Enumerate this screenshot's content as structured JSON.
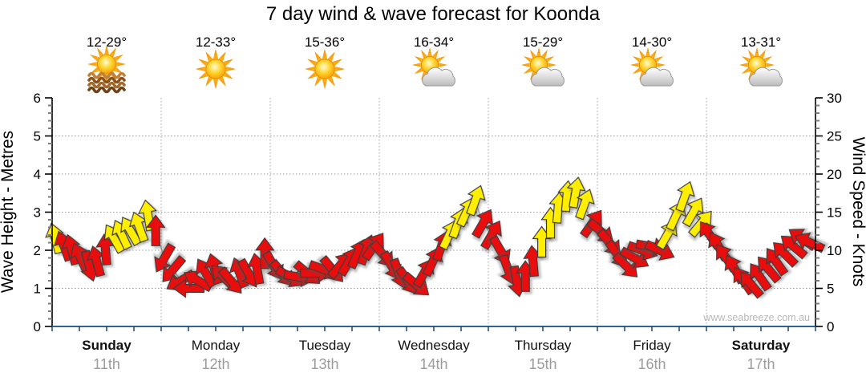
{
  "title": "7 day wind & wave forecast for Koonda",
  "watermark": "www.seabreeze.com.au",
  "axes": {
    "left_title": "Wave Height - Metres",
    "right_title": "Wind Speed - Knots",
    "left_ticks": [
      "0",
      "1",
      "2",
      "3",
      "4",
      "5",
      "6"
    ],
    "right_ticks": [
      "0",
      "5",
      "10",
      "15",
      "20",
      "25",
      "30"
    ]
  },
  "days": [
    {
      "name": "Sunday",
      "date": "11th",
      "temp": "12-29°",
      "icon": "sun-over-water",
      "bold": true
    },
    {
      "name": "Monday",
      "date": "12th",
      "temp": "12-33°",
      "icon": "sunny",
      "bold": false
    },
    {
      "name": "Tuesday",
      "date": "13th",
      "temp": "15-36°",
      "icon": "sunny",
      "bold": false
    },
    {
      "name": "Wednesday",
      "date": "14th",
      "temp": "16-34°",
      "icon": "partly-cloudy",
      "bold": false
    },
    {
      "name": "Thursday",
      "date": "15th",
      "temp": "15-29°",
      "icon": "partly-cloudy",
      "bold": false
    },
    {
      "name": "Friday",
      "date": "16th",
      "temp": "14-30°",
      "icon": "partly-cloudy",
      "bold": false
    },
    {
      "name": "Saturday",
      "date": "17th",
      "temp": "13-31°",
      "icon": "partly-cloudy",
      "bold": true
    }
  ],
  "colors": {
    "arrow_red": "#e90f0f",
    "arrow_yellow": "#ffee00",
    "grid": "#9f9f9f",
    "axis": "#000000",
    "bottom_axis": "#2e6496",
    "date_gray": "#9b9b9b",
    "watermark_gray": "#b8b8b8"
  },
  "chart_data": {
    "type": "scatter",
    "subtype": "wind-arrow-forecast",
    "title": "7 day wind & wave forecast for Koonda",
    "x_categories": [
      "Sunday 11th",
      "Monday 12th",
      "Tuesday 13th",
      "Wednesday 14th",
      "Thursday 15th",
      "Friday 16th",
      "Saturday 17th"
    ],
    "y_left": {
      "label": "Wave Height - Metres",
      "range": [
        0,
        6
      ],
      "major_step": 1
    },
    "y_right": {
      "label": "Wind Speed - Knots",
      "range": [
        0,
        30
      ],
      "major_step": 5
    },
    "grid": "dotted, horizontal at 1-5 m, vertical at day boundaries",
    "legend": "arrow color: yellow >= ~11.5 knots, red < ~11.5 knots; arrow rotation = wind direction",
    "arrow_fields": [
      "time_days",
      "wind_speed_knots",
      "direction_deg_cw_from_up",
      "color"
    ],
    "arrows": [
      [
        0.03,
        11.5,
        -15,
        "Y"
      ],
      [
        0.11,
        10.5,
        -20,
        "R"
      ],
      [
        0.18,
        10,
        -15,
        "R"
      ],
      [
        0.26,
        9,
        -25,
        "R"
      ],
      [
        0.34,
        8,
        165,
        "R"
      ],
      [
        0.41,
        8.5,
        -15,
        "R"
      ],
      [
        0.49,
        10,
        -5,
        "R"
      ],
      [
        0.57,
        11.5,
        -30,
        "Y"
      ],
      [
        0.64,
        12,
        -25,
        "Y"
      ],
      [
        0.72,
        12.5,
        -30,
        "Y"
      ],
      [
        0.8,
        13,
        -20,
        "Y"
      ],
      [
        0.88,
        14.5,
        -10,
        "Y"
      ],
      [
        0.95,
        12.5,
        0,
        "R"
      ],
      [
        1.03,
        9,
        -150,
        "R"
      ],
      [
        1.11,
        7.5,
        -140,
        "R"
      ],
      [
        1.18,
        6,
        -120,
        "R"
      ],
      [
        1.26,
        5,
        -90,
        "R"
      ],
      [
        1.34,
        6,
        -60,
        "R"
      ],
      [
        1.41,
        7,
        -30,
        "R"
      ],
      [
        1.49,
        7.5,
        -15,
        "R"
      ],
      [
        1.57,
        6.5,
        -45,
        "R"
      ],
      [
        1.64,
        6,
        140,
        "R"
      ],
      [
        1.72,
        7,
        -20,
        "R"
      ],
      [
        1.8,
        7,
        150,
        "R"
      ],
      [
        1.88,
        7.5,
        -10,
        "R"
      ],
      [
        1.95,
        9.5,
        0,
        "R"
      ],
      [
        2.03,
        8,
        150,
        "R"
      ],
      [
        2.11,
        7,
        140,
        "R"
      ],
      [
        2.18,
        6.5,
        120,
        "R"
      ],
      [
        2.26,
        6.5,
        100,
        "R"
      ],
      [
        2.34,
        7,
        130,
        "R"
      ],
      [
        2.41,
        7,
        90,
        "R"
      ],
      [
        2.49,
        7.5,
        110,
        "R"
      ],
      [
        2.57,
        7.5,
        140,
        "R"
      ],
      [
        2.64,
        8,
        40,
        "R"
      ],
      [
        2.72,
        8.5,
        30,
        "R"
      ],
      [
        2.8,
        9.5,
        25,
        "R"
      ],
      [
        2.88,
        10,
        20,
        "R"
      ],
      [
        2.95,
        10.5,
        35,
        "R"
      ],
      [
        3.03,
        9.5,
        140,
        "R"
      ],
      [
        3.11,
        8,
        150,
        "R"
      ],
      [
        3.18,
        7,
        160,
        "R"
      ],
      [
        3.26,
        6,
        145,
        "R"
      ],
      [
        3.34,
        5.5,
        130,
        "R"
      ],
      [
        3.41,
        7,
        30,
        "R"
      ],
      [
        3.49,
        8.5,
        25,
        "R"
      ],
      [
        3.57,
        10.5,
        20,
        "R"
      ],
      [
        3.64,
        12,
        25,
        "Y"
      ],
      [
        3.72,
        13.5,
        20,
        "Y"
      ],
      [
        3.8,
        15,
        25,
        "Y"
      ],
      [
        3.88,
        16.5,
        20,
        "Y"
      ],
      [
        3.95,
        13.5,
        30,
        "R"
      ],
      [
        4.03,
        12,
        30,
        "R"
      ],
      [
        4.11,
        10,
        150,
        "R"
      ],
      [
        4.18,
        7.5,
        160,
        "R"
      ],
      [
        4.26,
        6,
        170,
        "R"
      ],
      [
        4.34,
        6.5,
        0,
        "R"
      ],
      [
        4.41,
        8.5,
        -5,
        "R"
      ],
      [
        4.49,
        11,
        0,
        "Y"
      ],
      [
        4.57,
        13.5,
        0,
        "Y"
      ],
      [
        4.64,
        15.5,
        5,
        "Y"
      ],
      [
        4.72,
        17,
        5,
        "Y"
      ],
      [
        4.8,
        17.5,
        10,
        "Y"
      ],
      [
        4.88,
        16,
        20,
        "Y"
      ],
      [
        4.95,
        13.5,
        35,
        "R"
      ],
      [
        5.03,
        12.5,
        130,
        "R"
      ],
      [
        5.11,
        11,
        140,
        "R"
      ],
      [
        5.18,
        9.5,
        145,
        "R"
      ],
      [
        5.26,
        8,
        135,
        "R"
      ],
      [
        5.34,
        9,
        120,
        "R"
      ],
      [
        5.41,
        10,
        110,
        "R"
      ],
      [
        5.49,
        10.5,
        100,
        "R"
      ],
      [
        5.57,
        10,
        115,
        "R"
      ],
      [
        5.64,
        12,
        30,
        "Y"
      ],
      [
        5.72,
        14.5,
        25,
        "Y"
      ],
      [
        5.8,
        17,
        20,
        "Y"
      ],
      [
        5.88,
        15,
        30,
        "Y"
      ],
      [
        5.95,
        13.5,
        40,
        "Y"
      ],
      [
        6.03,
        12,
        -35,
        "R"
      ],
      [
        6.11,
        10.5,
        -30,
        "R"
      ],
      [
        6.18,
        9,
        -35,
        "R"
      ],
      [
        6.26,
        7.5,
        -30,
        "R"
      ],
      [
        6.34,
        6,
        -35,
        "R"
      ],
      [
        6.41,
        5.5,
        -40,
        "R"
      ],
      [
        6.49,
        6.5,
        -35,
        "R"
      ],
      [
        6.57,
        7.5,
        -40,
        "R"
      ],
      [
        6.64,
        8.5,
        -35,
        "R"
      ],
      [
        6.72,
        9.5,
        -45,
        "R"
      ],
      [
        6.8,
        10.5,
        -50,
        "R"
      ],
      [
        6.88,
        11.5,
        -55,
        "R"
      ],
      [
        6.95,
        11,
        -65,
        "R"
      ]
    ]
  }
}
